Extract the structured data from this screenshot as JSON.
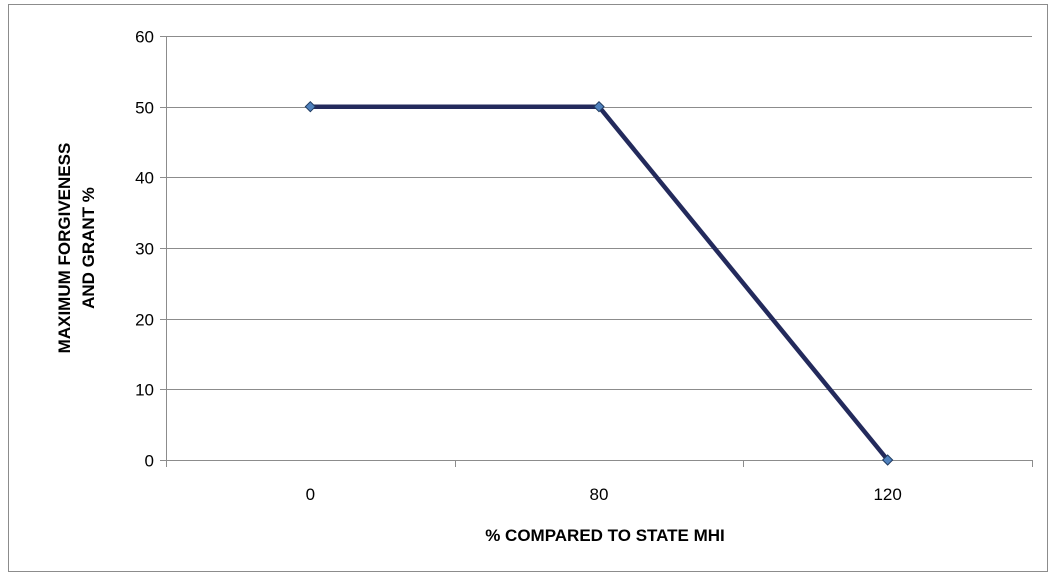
{
  "chart_data": {
    "type": "line",
    "xlabel": "% COMPARED TO STATE MHI",
    "ylabel": [
      "MAXIMUM FORGIVENESS",
      "AND GRANT %"
    ],
    "categories": [
      "0",
      "80",
      "120"
    ],
    "series": [
      {
        "values": [
          50,
          50,
          0
        ]
      }
    ],
    "ylim": [
      0,
      60
    ],
    "yticks": [
      0,
      10,
      20,
      30,
      40,
      50,
      60
    ],
    "grid": true,
    "legend": "none",
    "line_color": "#232a5c",
    "marker_color": "#4f81bd"
  }
}
